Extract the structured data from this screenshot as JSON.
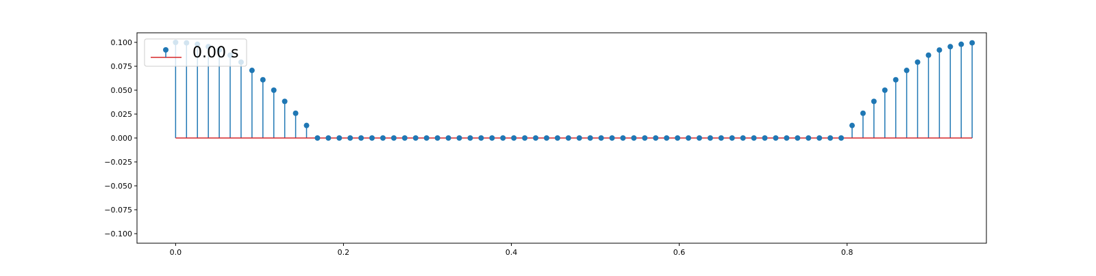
{
  "chart_data": {
    "type": "stem",
    "title": "",
    "xlabel": "",
    "ylabel": "",
    "xlim": [
      -0.046,
      0.966
    ],
    "ylim": [
      -0.11,
      0.11
    ],
    "grid": false,
    "legend": {
      "position": "top-left",
      "entries": [
        "0.00 s"
      ]
    },
    "xticks": [
      0.0,
      0.2,
      0.4,
      0.6,
      0.8
    ],
    "xtick_labels": [
      "0.0",
      "0.2",
      "0.4",
      "0.6",
      "0.8"
    ],
    "yticks": [
      0.1,
      0.075,
      0.05,
      0.025,
      0.0,
      -0.025,
      -0.05,
      -0.075,
      -0.1
    ],
    "ytick_labels": [
      "0.100",
      "0.075",
      "0.050",
      "0.025",
      "0.000",
      "−0.025",
      "−0.050",
      "−0.075",
      "−0.100"
    ],
    "baseline": 0.0,
    "colors": {
      "stem": "#1f77b4",
      "baseline": "#d62728",
      "axes": "#000000"
    },
    "series": [
      {
        "x_start": 0.0,
        "x_step": 0.013,
        "values": [
          0.1,
          0.0995,
          0.098,
          0.0955,
          0.092,
          0.0866,
          0.0793,
          0.0707,
          0.0609,
          0.05,
          0.0383,
          0.0259,
          0.0131,
          0,
          0,
          0,
          0,
          0,
          0,
          0,
          0,
          0,
          0,
          0,
          0,
          0,
          0,
          0,
          0,
          0,
          0,
          0,
          0,
          0,
          0,
          0,
          0,
          0,
          0,
          0,
          0,
          0,
          0,
          0,
          0,
          0,
          0,
          0,
          0,
          0,
          0,
          0,
          0,
          0,
          0,
          0,
          0,
          0,
          0,
          0,
          0,
          0,
          0.0131,
          0.0259,
          0.0383,
          0.05,
          0.0609,
          0.0707,
          0.0793,
          0.0866,
          0.092,
          0.0955,
          0.098,
          0.0995
        ]
      }
    ]
  }
}
